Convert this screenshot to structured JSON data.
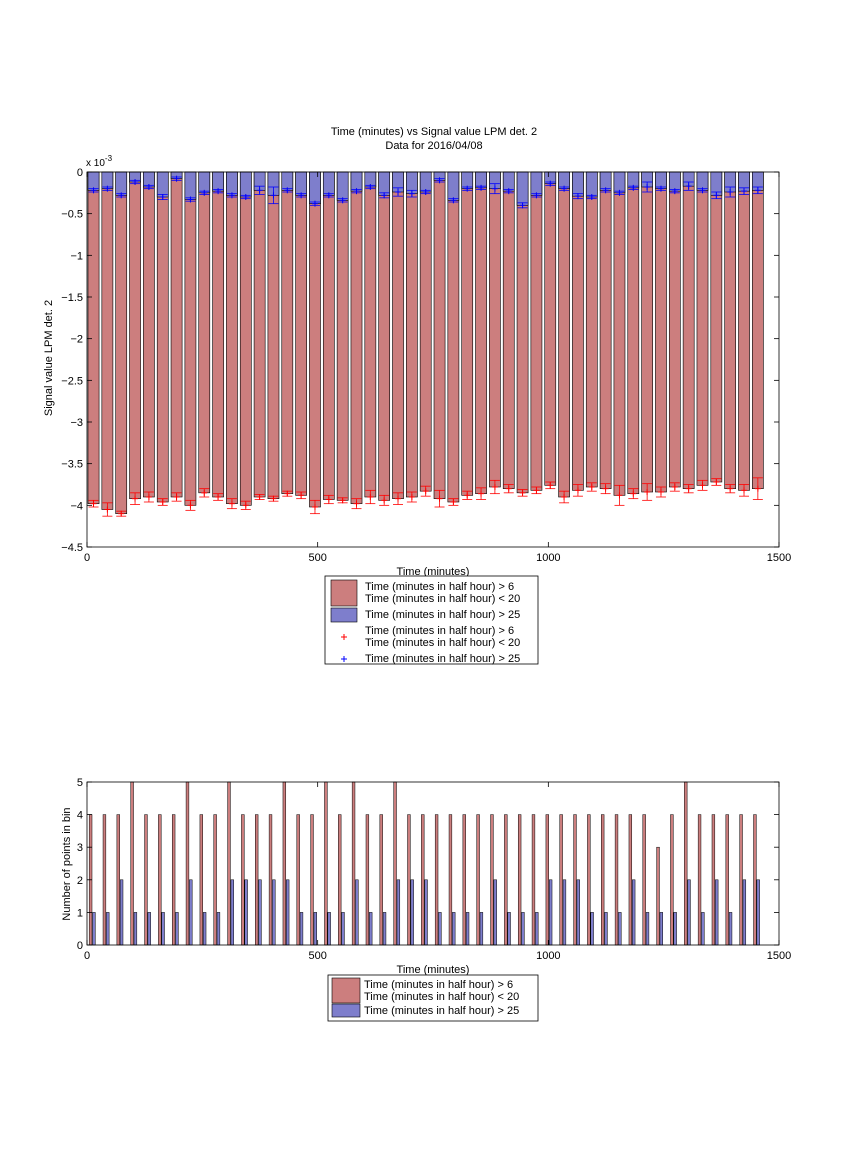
{
  "colors": {
    "red_bar": "#cc7e7e",
    "blue_bar": "#7e7ecc",
    "red_marker": "#ff0000",
    "blue_marker": "#0000ff"
  },
  "chart_data": [
    {
      "type": "bar",
      "title": "Time (minutes) vs Signal value LPM det. 2",
      "subtitle": "Data for 2016/04/08",
      "xlabel": "Time (minutes)",
      "ylabel": "Signal value LPM det. 2",
      "xlim": [
        0,
        1500
      ],
      "ylim": [
        -4.5,
        0
      ],
      "y_multiplier_label": "x 10",
      "y_multiplier_exp": "-3",
      "x_ticks": [
        0,
        500,
        1000,
        1500
      ],
      "y_ticks": [
        0,
        -0.5,
        -1,
        -1.5,
        -2,
        -2.5,
        -3,
        -3.5,
        -4,
        -4.5
      ],
      "grid": false,
      "legend": {
        "placement": "below",
        "entries": [
          {
            "kind": "patch",
            "color": "#cc7e7e",
            "lines": [
              "Time (minutes in half hour) > 6",
              "Time (minutes in half hour) < 20"
            ]
          },
          {
            "kind": "patch",
            "color": "#7e7ecc",
            "lines": [
              "Time (minutes in half hour) > 25"
            ]
          },
          {
            "kind": "marker",
            "color": "#ff0000",
            "lines": [
              "Time (minutes in half hour) > 6",
              "Time (minutes in half hour) < 20"
            ]
          },
          {
            "kind": "marker",
            "color": "#0000ff",
            "lines": [
              "Time (minutes in half hour) > 25"
            ]
          }
        ]
      },
      "x": [
        0,
        30,
        60,
        90,
        120,
        150,
        180,
        210,
        240,
        270,
        300,
        330,
        360,
        390,
        420,
        450,
        480,
        510,
        540,
        570,
        600,
        630,
        660,
        690,
        720,
        750,
        780,
        810,
        840,
        870,
        900,
        930,
        960,
        990,
        1020,
        1050,
        1080,
        1110,
        1140,
        1170,
        1200,
        1230,
        1260,
        1290,
        1320,
        1350,
        1380,
        1410,
        1440
      ],
      "series": [
        {
          "name": "Time (minutes in half hour) > 6 Time (minutes in half hour) < 20",
          "values": [
            -3.98,
            -4.05,
            -4.1,
            -3.92,
            -3.9,
            -3.96,
            -3.9,
            -4.0,
            -3.85,
            -3.9,
            -3.98,
            -4.0,
            -3.9,
            -3.92,
            -3.86,
            -3.88,
            -4.02,
            -3.93,
            -3.94,
            -3.98,
            -3.9,
            -3.94,
            -3.92,
            -3.9,
            -3.83,
            -3.92,
            -3.96,
            -3.88,
            -3.86,
            -3.78,
            -3.8,
            -3.85,
            -3.82,
            -3.76,
            -3.9,
            -3.82,
            -3.78,
            -3.8,
            -3.88,
            -3.86,
            -3.84,
            -3.84,
            -3.78,
            -3.8,
            -3.76,
            -3.72,
            -3.8,
            -3.82,
            -3.8
          ],
          "err": [
            0.04,
            0.08,
            0.03,
            0.07,
            0.06,
            0.04,
            0.05,
            0.06,
            0.05,
            0.04,
            0.06,
            0.05,
            0.03,
            0.03,
            0.03,
            0.04,
            0.08,
            0.05,
            0.03,
            0.06,
            0.08,
            0.06,
            0.07,
            0.06,
            0.06,
            0.1,
            0.04,
            0.05,
            0.07,
            0.08,
            0.05,
            0.04,
            0.04,
            0.04,
            0.07,
            0.07,
            0.05,
            0.06,
            0.12,
            0.06,
            0.1,
            0.06,
            0.05,
            0.05,
            0.06,
            0.04,
            0.05,
            0.07,
            0.13
          ]
        },
        {
          "name": "Time (minutes in half hour) > 25",
          "values": [
            -0.22,
            -0.2,
            -0.28,
            -0.12,
            -0.18,
            -0.3,
            -0.08,
            -0.33,
            -0.25,
            -0.23,
            -0.28,
            -0.3,
            -0.22,
            -0.28,
            -0.22,
            -0.28,
            -0.38,
            -0.28,
            -0.34,
            -0.23,
            -0.18,
            -0.28,
            -0.24,
            -0.26,
            -0.24,
            -0.1,
            -0.34,
            -0.2,
            -0.19,
            -0.2,
            -0.23,
            -0.4,
            -0.28,
            -0.14,
            -0.2,
            -0.29,
            -0.3,
            -0.22,
            -0.25,
            -0.19,
            -0.18,
            -0.2,
            -0.23,
            -0.17,
            -0.22,
            -0.28,
            -0.24,
            -0.23,
            -0.22
          ],
          "err": [
            0.02,
            0.02,
            0.02,
            0.02,
            0.02,
            0.03,
            0.02,
            0.02,
            0.02,
            0.02,
            0.02,
            0.02,
            0.05,
            0.1,
            0.02,
            0.02,
            0.02,
            0.02,
            0.02,
            0.02,
            0.02,
            0.03,
            0.05,
            0.04,
            0.02,
            0.02,
            0.02,
            0.02,
            0.02,
            0.06,
            0.02,
            0.03,
            0.02,
            0.02,
            0.02,
            0.03,
            0.02,
            0.02,
            0.02,
            0.02,
            0.06,
            0.02,
            0.02,
            0.05,
            0.02,
            0.04,
            0.06,
            0.04,
            0.04
          ]
        }
      ]
    },
    {
      "type": "bar",
      "title": "",
      "xlabel": "Time (minutes)",
      "ylabel": "Number of points in bin",
      "xlim": [
        0,
        1500
      ],
      "ylim": [
        0,
        5
      ],
      "x_ticks": [
        0,
        500,
        1000,
        1500
      ],
      "y_ticks": [
        0,
        1,
        2,
        3,
        4,
        5
      ],
      "grid": false,
      "legend": {
        "placement": "below",
        "entries": [
          {
            "kind": "patch",
            "color": "#cc7e7e",
            "lines": [
              "Time (minutes in half hour) > 6",
              "Time (minutes in half hour) < 20"
            ]
          },
          {
            "kind": "patch",
            "color": "#7e7ecc",
            "lines": [
              "Time (minutes in half hour) > 25"
            ]
          }
        ]
      },
      "x": [
        0,
        30,
        60,
        90,
        120,
        150,
        180,
        210,
        240,
        270,
        300,
        330,
        360,
        390,
        420,
        450,
        480,
        510,
        540,
        570,
        600,
        630,
        660,
        690,
        720,
        750,
        780,
        810,
        840,
        870,
        900,
        930,
        960,
        990,
        1020,
        1050,
        1080,
        1110,
        1140,
        1170,
        1200,
        1230,
        1260,
        1290,
        1320,
        1350,
        1380,
        1410,
        1440
      ],
      "series": [
        {
          "name": "Time (minutes in half hour) > 6 Time (minutes in half hour) < 20",
          "values": [
            4,
            4,
            4,
            5,
            4,
            4,
            4,
            5,
            4,
            4,
            5,
            4,
            4,
            4,
            5,
            4,
            4,
            5,
            4,
            5,
            4,
            4,
            5,
            4,
            4,
            4,
            4,
            4,
            4,
            4,
            4,
            4,
            4,
            4,
            4,
            4,
            4,
            4,
            4,
            4,
            4,
            3,
            4,
            5,
            4,
            4,
            4,
            4,
            4
          ]
        },
        {
          "name": "Time (minutes in half hour) > 25",
          "values": [
            1,
            1,
            2,
            1,
            1,
            1,
            1,
            2,
            1,
            1,
            2,
            2,
            2,
            2,
            2,
            1,
            1,
            1,
            1,
            2,
            1,
            1,
            2,
            2,
            2,
            1,
            1,
            1,
            1,
            2,
            1,
            1,
            1,
            2,
            2,
            2,
            1,
            1,
            1,
            2,
            1,
            1,
            1,
            2,
            1,
            2,
            1,
            2,
            2
          ]
        }
      ]
    }
  ]
}
